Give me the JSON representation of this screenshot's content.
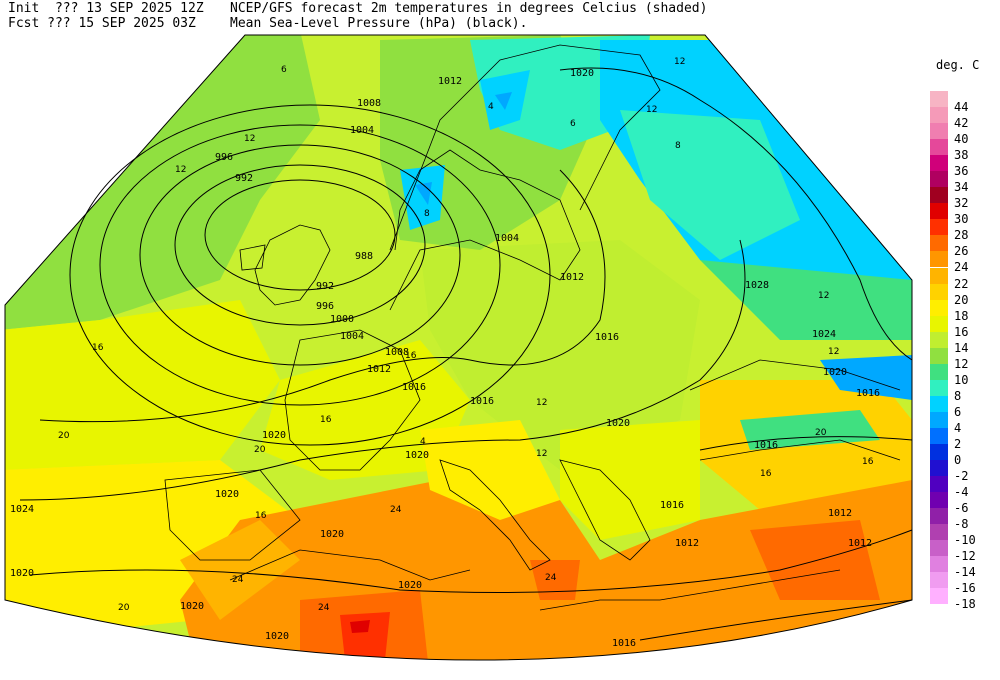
{
  "header": {
    "init_label": "Init  ??? 13 SEP 2025 12Z",
    "fcst_label": "Fcst ??? 15 SEP 2025 03Z",
    "title_line1": "NCEP/GFS forecast 2m temperatures in degrees Celcius (shaded)",
    "title_line2": "Mean Sea-Level Pressure (hPa) (black)."
  },
  "legend": {
    "title": "deg. C",
    "entries": [
      {
        "label": "44",
        "color": "#f7b4c4"
      },
      {
        "label": "42",
        "color": "#f59ab8"
      },
      {
        "label": "40",
        "color": "#f07eb0"
      },
      {
        "label": "38",
        "color": "#e5489a"
      },
      {
        "label": "36",
        "color": "#d0007a"
      },
      {
        "label": "34",
        "color": "#b00060"
      },
      {
        "label": "32",
        "color": "#a00020"
      },
      {
        "label": "30",
        "color": "#e00000"
      },
      {
        "label": "28",
        "color": "#ff3000"
      },
      {
        "label": "26",
        "color": "#ff6a00"
      },
      {
        "label": "24",
        "color": "#ff9600"
      },
      {
        "label": "22",
        "color": "#ffb400"
      },
      {
        "label": "20",
        "color": "#ffd200"
      },
      {
        "label": "18",
        "color": "#ffee00"
      },
      {
        "label": "16",
        "color": "#e8f500"
      },
      {
        "label": "14",
        "color": "#c0ee30"
      },
      {
        "label": "12",
        "color": "#90e040"
      },
      {
        "label": "10",
        "color": "#40e080"
      },
      {
        "label": "8",
        "color": "#30f0c0"
      },
      {
        "label": "6",
        "color": "#00d2ff"
      },
      {
        "label": "4",
        "color": "#00a8ff"
      },
      {
        "label": "2",
        "color": "#0070ff"
      },
      {
        "label": "0",
        "color": "#0030e0"
      },
      {
        "label": "-2",
        "color": "#2010d0"
      },
      {
        "label": "-4",
        "color": "#5000c0"
      },
      {
        "label": "-6",
        "color": "#7000b0"
      },
      {
        "label": "-8",
        "color": "#9020a8"
      },
      {
        "label": "-10",
        "color": "#b040b0"
      },
      {
        "label": "-12",
        "color": "#c860c8"
      },
      {
        "label": "-14",
        "color": "#e080e0"
      },
      {
        "label": "-16",
        "color": "#f09cf0"
      },
      {
        "label": "-18",
        "color": "#ffb0ff"
      }
    ]
  },
  "isobars": {
    "labels": [
      "1012",
      "1008",
      "1004",
      "996",
      "992",
      "988",
      "992",
      "996",
      "1000",
      "1004",
      "1008",
      "1012",
      "1016",
      "1020",
      "1020",
      "1020",
      "1024",
      "1020",
      "1020",
      "1020",
      "1020",
      "1020",
      "1016",
      "1020",
      "1004",
      "1012",
      "1016",
      "1020",
      "1028",
      "1024",
      "1020",
      "1016",
      "1016",
      "1016",
      "1012",
      "1012",
      "1016",
      "1012"
    ]
  },
  "temperature_labels": [
    "12",
    "12",
    "12",
    "16",
    "20",
    "16",
    "20",
    "24",
    "24",
    "20",
    "16",
    "4",
    "4",
    "8",
    "6",
    "6",
    "8",
    "12",
    "24",
    "24",
    "16",
    "16",
    "12",
    "12",
    "12",
    "16",
    "12",
    "20"
  ]
}
